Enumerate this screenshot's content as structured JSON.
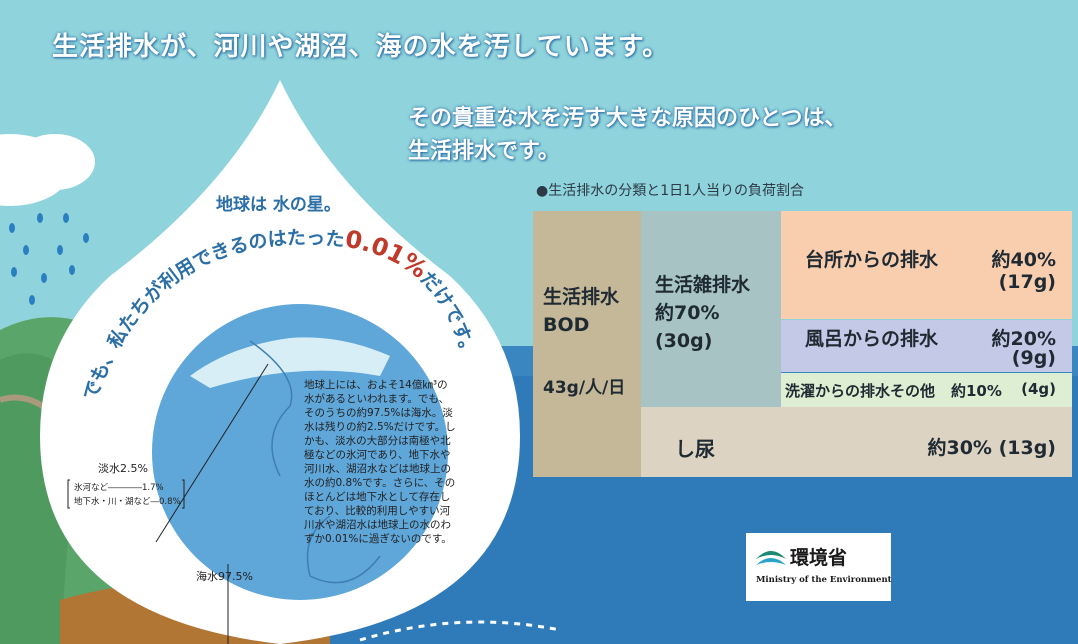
{
  "headline": "生活排水が、河川や湖沼、海の水を汚しています。",
  "subhead": {
    "line1": "その貴重な水を汚す大きな原因のひとつは、",
    "line2": "生活排水です。"
  },
  "earth": {
    "title": "地球は 水の星。",
    "arc_text_prefix": "でも、私たちが利用できるのはたった",
    "arc_highlight": "0.01%",
    "arc_text_suffix": "だけです。",
    "description_lines": [
      "地球上には、およそ14億㎞³の",
      "水があるといわれます。でも、",
      "そのうちの約97.5%は海水。淡",
      "水は残りの約2.5%だけです。し",
      "かも、淡水の大部分は南極や北",
      "極などの氷河であり、地下水や",
      "河川水、湖沼水などは地球上の",
      "水の約0.8%です。さらに、その",
      "ほとんどは地下水として存在し",
      "ており、比較的利用しやすい河",
      "川水や湖沼水は地球上の水のわ",
      "ずか0.01%に過ぎないのです。"
    ],
    "freshwater_label": "淡水2.5%",
    "glacier_label": "氷河など――――1.7%",
    "ground_label": "地下水・川・湖など―0.8%",
    "seawater_label": "海水97.5%"
  },
  "table": {
    "title": "●生活排水の分類と1日1人当りの負荷割合",
    "bod_line1": "生活排水",
    "bod_line2": "BOD",
    "bod_value": "43g/人/日",
    "zatsu_line1": "生活雑排水",
    "zatsu_line2": "約70%",
    "zatsu_line3": "(30g)",
    "kitchen_label": "台所からの排水",
    "kitchen_pct": "約40%",
    "kitchen_g": "(17g)",
    "bath_label": "風呂からの排水",
    "bath_pct": "約20%",
    "bath_g": "(9g)",
    "wash_label": "洗濯からの排水その他",
    "wash_pct": "約10%",
    "wash_g": "(4g)",
    "urine_label": "し尿",
    "urine_value": "約30% (13g)"
  },
  "logo": {
    "name_jp": "環境省",
    "name_en": "Ministry of the Environment"
  },
  "colors": {
    "sky": "#8fd3dc",
    "sea": "#2f7ab9",
    "highlight_red": "#c0392b",
    "text_blue": "#2c6fa6"
  }
}
